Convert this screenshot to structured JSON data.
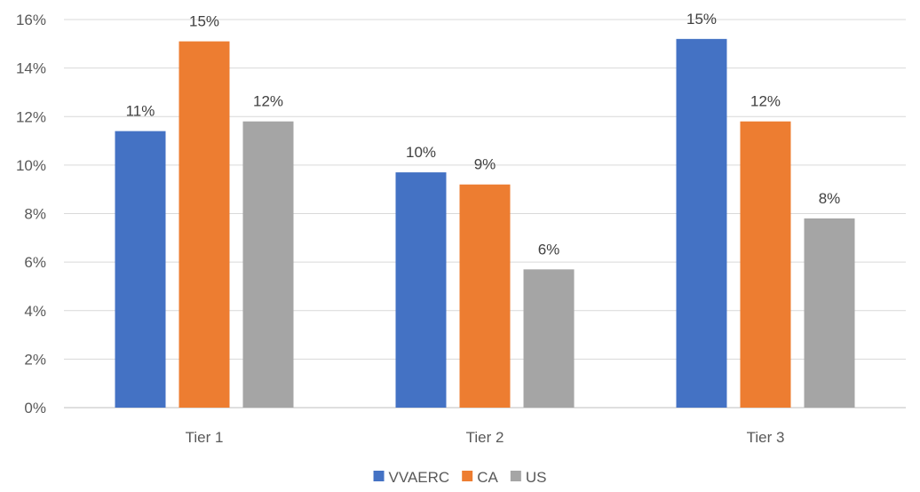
{
  "chart_data": {
    "type": "bar",
    "categories": [
      "Tier 1",
      "Tier 2",
      "Tier 3"
    ],
    "series": [
      {
        "name": "VVAERC",
        "color": "#4472C4",
        "values": [
          0.114,
          0.097,
          0.152
        ],
        "labels": [
          "11%",
          "10%",
          "15%"
        ]
      },
      {
        "name": "CA",
        "color": "#ED7D31",
        "values": [
          0.151,
          0.092,
          0.118
        ],
        "labels": [
          "15%",
          "9%",
          "12%"
        ]
      },
      {
        "name": "US",
        "color": "#A5A5A5",
        "values": [
          0.118,
          0.057,
          0.078
        ],
        "labels": [
          "12%",
          "6%",
          "8%"
        ]
      }
    ],
    "ylim": [
      0,
      0.16
    ],
    "y_ticks": [
      0,
      0.02,
      0.04,
      0.06,
      0.08,
      0.1,
      0.12,
      0.14,
      0.16
    ],
    "y_tick_labels": [
      "0%",
      "2%",
      "4%",
      "6%",
      "8%",
      "10%",
      "12%",
      "14%",
      "16%"
    ],
    "grid": true,
    "legend_position": "bottom"
  }
}
